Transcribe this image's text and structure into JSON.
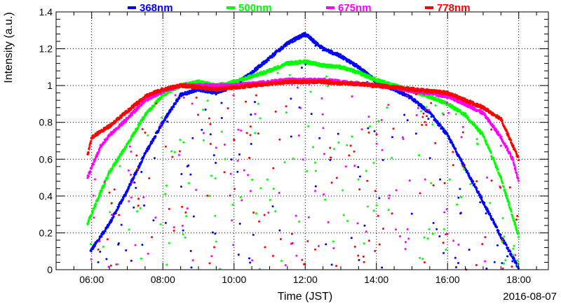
{
  "chart_data": {
    "type": "scatter",
    "title": "",
    "xlabel": "Time (JST)",
    "ylabel": "Intensity (a.u.)",
    "date": "2016-08-07",
    "xlim": [
      "05:00",
      "18:50"
    ],
    "ylim": [
      0,
      1.4
    ],
    "x_ticks": [
      "06:00",
      "08:00",
      "10:00",
      "12:00",
      "14:00",
      "16:00",
      "18:00"
    ],
    "y_ticks": [
      "0",
      "0.2",
      "0.4",
      "0.6",
      "0.8",
      "1",
      "1.2",
      "1.4"
    ],
    "grid": true,
    "legend_position": "top",
    "series": [
      {
        "name": "368nm",
        "color": "#0000ff",
        "envelope": [
          [
            "05:58",
            0.1
          ],
          [
            "06:30",
            0.25
          ],
          [
            "07:00",
            0.43
          ],
          [
            "07:30",
            0.63
          ],
          [
            "08:00",
            0.8
          ],
          [
            "08:30",
            0.95
          ],
          [
            "09:00",
            0.98
          ],
          [
            "09:30",
            0.96
          ],
          [
            "10:00",
            1.0
          ],
          [
            "10:30",
            1.07
          ],
          [
            "11:00",
            1.15
          ],
          [
            "11:30",
            1.23
          ],
          [
            "12:00",
            1.28
          ],
          [
            "12:30",
            1.2
          ],
          [
            "13:00",
            1.16
          ],
          [
            "13:30",
            1.1
          ],
          [
            "14:00",
            1.02
          ],
          [
            "14:30",
            0.98
          ],
          [
            "15:00",
            0.93
          ],
          [
            "15:30",
            0.85
          ],
          [
            "16:00",
            0.73
          ],
          [
            "16:30",
            0.55
          ],
          [
            "17:00",
            0.37
          ],
          [
            "17:30",
            0.18
          ],
          [
            "18:00",
            0.01
          ]
        ]
      },
      {
        "name": "500nm",
        "color": "#00ff00",
        "envelope": [
          [
            "05:53",
            0.25
          ],
          [
            "06:15",
            0.42
          ],
          [
            "06:30",
            0.53
          ],
          [
            "07:00",
            0.68
          ],
          [
            "07:30",
            0.84
          ],
          [
            "08:00",
            0.95
          ],
          [
            "08:30",
            1.0
          ],
          [
            "09:00",
            1.02
          ],
          [
            "09:30",
            1.0
          ],
          [
            "10:00",
            1.02
          ],
          [
            "10:30",
            1.05
          ],
          [
            "11:00",
            1.08
          ],
          [
            "11:30",
            1.12
          ],
          [
            "12:00",
            1.13
          ],
          [
            "12:30",
            1.11
          ],
          [
            "13:00",
            1.1
          ],
          [
            "13:30",
            1.07
          ],
          [
            "14:00",
            1.03
          ],
          [
            "14:30",
            1.0
          ],
          [
            "15:00",
            0.97
          ],
          [
            "15:30",
            0.94
          ],
          [
            "16:00",
            0.9
          ],
          [
            "16:30",
            0.84
          ],
          [
            "17:00",
            0.73
          ],
          [
            "17:30",
            0.5
          ],
          [
            "18:00",
            0.18
          ]
        ]
      },
      {
        "name": "675nm",
        "color": "#ff00ff",
        "envelope": [
          [
            "05:53",
            0.5
          ],
          [
            "06:15",
            0.67
          ],
          [
            "06:30",
            0.73
          ],
          [
            "07:00",
            0.82
          ],
          [
            "07:30",
            0.92
          ],
          [
            "08:00",
            0.97
          ],
          [
            "08:30",
            1.0
          ],
          [
            "09:00",
            1.0
          ],
          [
            "09:30",
            1.0
          ],
          [
            "10:00",
            1.0
          ],
          [
            "10:30",
            1.01
          ],
          [
            "11:00",
            1.02
          ],
          [
            "11:30",
            1.03
          ],
          [
            "12:00",
            1.03
          ],
          [
            "12:30",
            1.03
          ],
          [
            "13:00",
            1.02
          ],
          [
            "13:30",
            1.01
          ],
          [
            "14:00",
            1.0
          ],
          [
            "14:30",
            0.99
          ],
          [
            "15:00",
            0.97
          ],
          [
            "15:30",
            0.96
          ],
          [
            "16:00",
            0.94
          ],
          [
            "16:30",
            0.9
          ],
          [
            "17:00",
            0.85
          ],
          [
            "17:30",
            0.72
          ],
          [
            "17:50",
            0.6
          ],
          [
            "18:00",
            0.48
          ]
        ]
      },
      {
        "name": "778nm",
        "color": "#ff0000",
        "envelope": [
          [
            "05:53",
            0.62
          ],
          [
            "06:00",
            0.72
          ],
          [
            "06:30",
            0.78
          ],
          [
            "07:00",
            0.86
          ],
          [
            "07:30",
            0.94
          ],
          [
            "08:00",
            0.98
          ],
          [
            "08:30",
            1.0
          ],
          [
            "09:00",
            0.99
          ],
          [
            "09:30",
            0.98
          ],
          [
            "10:00",
            0.99
          ],
          [
            "10:30",
            1.0
          ],
          [
            "11:00",
            1.01
          ],
          [
            "11:30",
            1.02
          ],
          [
            "12:00",
            1.02
          ],
          [
            "12:30",
            1.02
          ],
          [
            "13:00",
            1.01
          ],
          [
            "13:30",
            1.01
          ],
          [
            "14:00",
            1.0
          ],
          [
            "14:30",
            0.99
          ],
          [
            "15:00",
            0.98
          ],
          [
            "15:30",
            0.97
          ],
          [
            "16:00",
            0.96
          ],
          [
            "16:30",
            0.92
          ],
          [
            "17:00",
            0.88
          ],
          [
            "17:30",
            0.82
          ],
          [
            "18:00",
            0.6
          ]
        ]
      }
    ]
  }
}
